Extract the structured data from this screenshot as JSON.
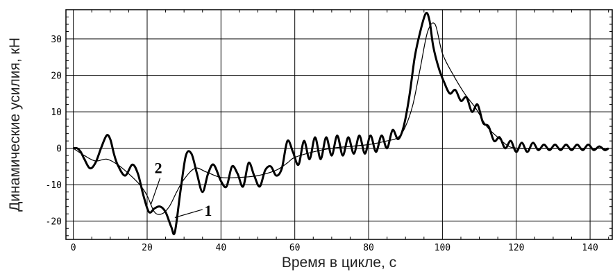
{
  "chart_data": {
    "type": "line",
    "title": "",
    "xlabel": "Время в цикле, с",
    "ylabel": "Динамические усилия, кН",
    "xlim": [
      -2,
      146
    ],
    "ylim": [
      -25,
      38
    ],
    "grid": true,
    "x_ticks": [
      0,
      20,
      40,
      60,
      80,
      100,
      120,
      140
    ],
    "y_ticks": [
      -20,
      -10,
      0,
      10,
      20,
      30
    ],
    "x_tick_labels": [
      "0",
      "20",
      "40",
      "60",
      "80",
      "100",
      "120",
      "140"
    ],
    "y_tick_labels": [
      "-20",
      "-10",
      "0",
      "10",
      "20",
      "30"
    ],
    "series": [
      {
        "name": "1",
        "x": [
          0,
          1,
          2,
          3,
          4.5,
          6,
          7.5,
          9,
          10,
          11,
          12,
          14,
          16,
          17.5,
          19,
          20.5,
          22,
          23.5,
          25,
          26.5,
          27.5,
          29,
          30.5,
          32,
          33.5,
          35,
          36.5,
          38,
          40,
          41.5,
          43,
          44.5,
          46,
          47.5,
          49,
          50.5,
          52,
          53.5,
          55,
          56.5,
          58,
          59.5,
          61,
          62.5,
          64,
          65.5,
          67,
          68.5,
          70,
          71.5,
          73,
          74.5,
          76,
          77.5,
          79,
          80.5,
          82,
          83.5,
          85,
          86.5,
          88,
          89.5,
          91,
          92.5,
          94,
          95.5,
          96.5,
          97.5,
          99,
          100.5,
          102,
          103.5,
          105,
          106.5,
          108,
          109.5,
          111,
          112.5,
          114,
          115.5,
          117,
          118.5,
          120,
          121.5,
          123,
          124.5,
          126,
          127.5,
          129,
          130.5,
          132,
          133.5,
          135,
          136.5,
          138,
          139.5,
          141,
          142.5,
          144,
          145
        ],
        "y": [
          0,
          0,
          -1,
          -3,
          -5.5,
          -4,
          0,
          3.5,
          2.5,
          -1.5,
          -4.5,
          -7.5,
          -4.5,
          -7,
          -13,
          -17.5,
          -16.5,
          -16,
          -17.5,
          -21.5,
          -23,
          -12,
          -2,
          -1.5,
          -7,
          -12,
          -7,
          -4.5,
          -9,
          -10.5,
          -5,
          -7,
          -10.5,
          -4,
          -7.5,
          -10.5,
          -6,
          -5,
          -7.5,
          -5.5,
          2,
          -1,
          -4.5,
          2,
          -3,
          3,
          -3,
          3,
          -2,
          3.5,
          -2,
          3,
          -1.5,
          3.5,
          -1.5,
          3.5,
          -1,
          3.5,
          0,
          5,
          2.5,
          6,
          14,
          25,
          32,
          37,
          35,
          28,
          22,
          18,
          15,
          16,
          13,
          14,
          10,
          12,
          7,
          6,
          2,
          3,
          0,
          2,
          -1,
          1.5,
          -1,
          1.5,
          -0.5,
          1,
          -0.5,
          1,
          -0.5,
          1,
          -0.5,
          1,
          -0.5,
          1,
          -0.5,
          0.5,
          -0.5,
          0
        ]
      },
      {
        "name": "2",
        "x": [
          0,
          3,
          6,
          9,
          12,
          15,
          18,
          20,
          22,
          24,
          26,
          28,
          30,
          33,
          36,
          40,
          45,
          50,
          55,
          58,
          60,
          65,
          70,
          75,
          80,
          85,
          88,
          90,
          92,
          94,
          96,
          98,
          100,
          103,
          106,
          109,
          112,
          115,
          118,
          121,
          125,
          130,
          135,
          140,
          145
        ],
        "y": [
          0,
          -2,
          -3.5,
          -3,
          -4.5,
          -7,
          -10,
          -13,
          -17.5,
          -18,
          -16,
          -12,
          -8.5,
          -5.5,
          -6.5,
          -8,
          -8,
          -7.5,
          -6,
          -4,
          -2.5,
          -1,
          0,
          0.5,
          1,
          2,
          3,
          6,
          12,
          22,
          32,
          34,
          26,
          20,
          15,
          11,
          6,
          3,
          0.5,
          0,
          0,
          0,
          0,
          0,
          0
        ]
      }
    ]
  }
}
